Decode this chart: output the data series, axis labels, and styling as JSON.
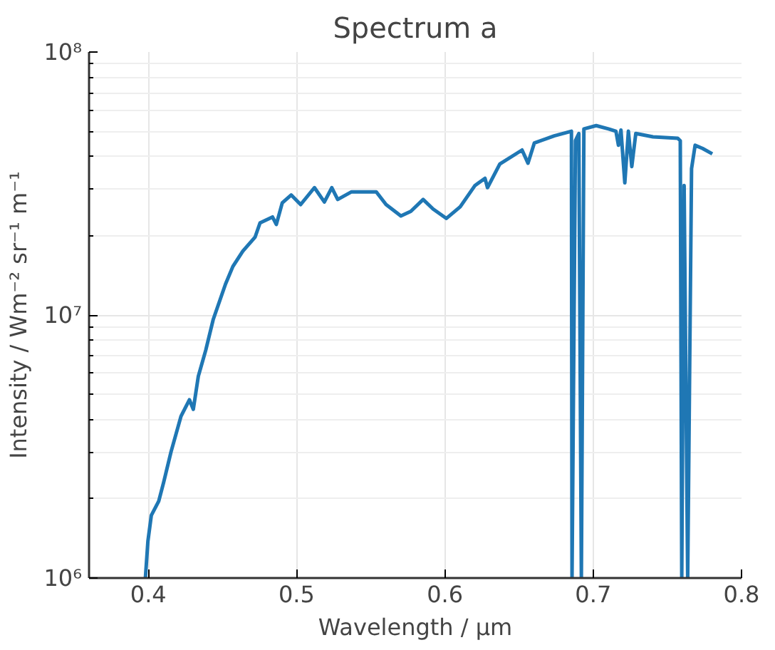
{
  "chart_data": {
    "type": "line",
    "title": "Spectrum a",
    "xlabel": "Wavelength / μm",
    "ylabel": "Intensity / Wm⁻² sr⁻¹ m⁻¹",
    "log": "y",
    "grid": true,
    "xlim": [
      0.36,
      0.8
    ],
    "xticks": [
      0.4,
      0.5,
      0.6,
      0.7,
      0.8
    ],
    "ylim": [
      1000000.0,
      100000000.0
    ],
    "yticks": [
      {
        "value": 1000000,
        "label": "10⁶"
      },
      {
        "value": 10000000,
        "label": "10⁷"
      },
      {
        "value": 100000000,
        "label": "10⁸"
      }
    ],
    "series": [
      {
        "color": "#1f77b4",
        "x": [
          0.398,
          0.3997,
          0.402,
          0.407,
          0.4103,
          0.4153,
          0.422,
          0.4277,
          0.4303,
          0.4337,
          0.4387,
          0.4437,
          0.452,
          0.457,
          0.4637,
          0.472,
          0.4753,
          0.4837,
          0.4863,
          0.4903,
          0.4963,
          0.5027,
          0.512,
          0.5187,
          0.5237,
          0.5277,
          0.537,
          0.5537,
          0.5603,
          0.5703,
          0.577,
          0.5853,
          0.592,
          0.601,
          0.6103,
          0.6203,
          0.627,
          0.6287,
          0.637,
          0.652,
          0.656,
          0.6603,
          0.6737,
          0.6853,
          0.6857,
          0.688,
          0.6903,
          0.692,
          0.6937,
          0.702,
          0.7103,
          0.7153,
          0.717,
          0.7187,
          0.7213,
          0.7237,
          0.726,
          0.7287,
          0.7403,
          0.757,
          0.7587,
          0.7597,
          0.7613,
          0.7637,
          0.7663,
          0.7687,
          0.7737,
          0.7803
        ],
        "values": [
          1000000.0,
          1380000.0,
          1730000.0,
          1960000.0,
          2310000.0,
          3020000.0,
          4120000.0,
          4760000.0,
          4380000.0,
          5850000.0,
          7350000.0,
          9600000.0,
          13100000.0,
          15300000.0,
          17500000.0,
          19800000.0,
          22400000.0,
          23600000.0,
          22100000.0,
          26700000.0,
          28600000.0,
          26300000.0,
          30500000.0,
          26900000.0,
          30500000.0,
          27500000.0,
          29400000.0,
          29400000.0,
          26300000.0,
          23800000.0,
          24800000.0,
          27500000.0,
          25300000.0,
          23300000.0,
          25800000.0,
          31100000.0,
          33100000.0,
          30500000.0,
          37500000.0,
          42400000.0,
          37800000.0,
          45100000.0,
          48000000.0,
          50000000.0,
          1000000.0,
          46000000.0,
          49000000.0,
          1000000.0,
          51000000.0,
          52500000.0,
          51000000.0,
          50000000.0,
          44200000.0,
          50500000.0,
          31800000.0,
          50000000.0,
          36700000.0,
          49000000.0,
          47600000.0,
          47000000.0,
          46000000.0,
          1000000.0,
          31100000.0,
          1000000.0,
          36000000.0,
          44200000.0,
          43000000.0,
          41000000.0
        ]
      }
    ]
  }
}
